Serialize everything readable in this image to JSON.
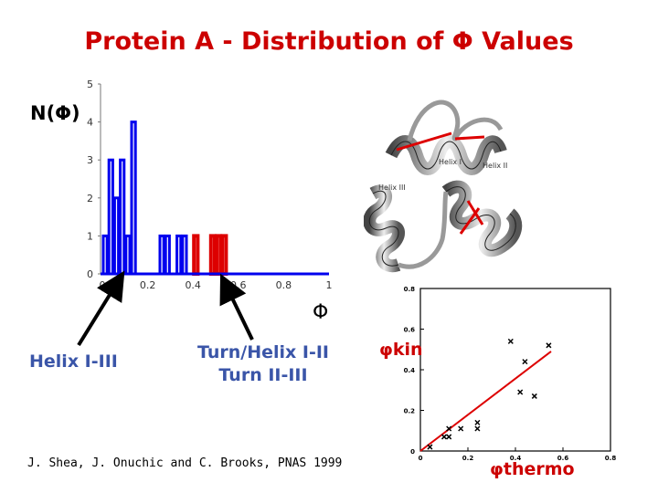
{
  "title": "Protein A - Distribution of  Φ Values",
  "histogram": {
    "ylabel": "N(Φ)",
    "xlabel": "Φ"
  },
  "annotations": {
    "left_label": "Helix I-III",
    "right_label_line1": "Turn/Helix I-II",
    "right_label_line2": "Turn II-III"
  },
  "structure_image": {
    "label_helix_1": "Helix I",
    "label_helix_2": "Helix II",
    "label_helix_3": "Helix III"
  },
  "scatter": {
    "ylabel": "φkin",
    "xlabel": "φthermo"
  },
  "citation": "J. Shea, J. Onuchic and C. Brooks, PNAS 1999",
  "colors": {
    "title": "#cc0000",
    "blue_bars": "#0000ee",
    "red_bars": "#dd0000",
    "label_blue": "#3a55a8",
    "fit_line": "#dd0000"
  },
  "chart_data": [
    {
      "type": "bar",
      "xlabel": "Φ",
      "ylabel": "N(Φ)",
      "xlim": [
        0,
        1
      ],
      "ylim": [
        0,
        5
      ],
      "xticks": [
        "0",
        "0.2",
        "0.4",
        "0.6",
        "0.8",
        "1"
      ],
      "yticks": [
        "0",
        "1",
        "2",
        "3",
        "4",
        "5"
      ],
      "bins": [
        {
          "x0": 0.0,
          "x1": 0.025,
          "count": 1,
          "color": "blue"
        },
        {
          "x0": 0.025,
          "x1": 0.05,
          "count": 3,
          "color": "blue"
        },
        {
          "x0": 0.05,
          "x1": 0.075,
          "count": 2,
          "color": "blue"
        },
        {
          "x0": 0.075,
          "x1": 0.1,
          "count": 3,
          "color": "blue"
        },
        {
          "x0": 0.1,
          "x1": 0.125,
          "count": 1,
          "color": "blue"
        },
        {
          "x0": 0.125,
          "x1": 0.15,
          "count": 4,
          "color": "blue"
        },
        {
          "x0": 0.15,
          "x1": 0.175,
          "count": 0,
          "color": "blue"
        },
        {
          "x0": 0.175,
          "x1": 0.2,
          "count": 0,
          "color": "blue"
        },
        {
          "x0": 0.2,
          "x1": 0.225,
          "count": 0,
          "color": "blue"
        },
        {
          "x0": 0.225,
          "x1": 0.25,
          "count": 0,
          "color": "blue"
        },
        {
          "x0": 0.25,
          "x1": 0.275,
          "count": 1,
          "color": "blue"
        },
        {
          "x0": 0.275,
          "x1": 0.3,
          "count": 1,
          "color": "blue"
        },
        {
          "x0": 0.3,
          "x1": 0.325,
          "count": 0,
          "color": "blue"
        },
        {
          "x0": 0.325,
          "x1": 0.35,
          "count": 1,
          "color": "blue"
        },
        {
          "x0": 0.35,
          "x1": 0.375,
          "count": 1,
          "color": "blue"
        },
        {
          "x0": 0.375,
          "x1": 0.4,
          "count": 0,
          "color": "blue"
        },
        {
          "x0": 0.4,
          "x1": 0.425,
          "count": 1,
          "color": "red"
        },
        {
          "x0": 0.425,
          "x1": 0.45,
          "count": 0,
          "color": "blue"
        },
        {
          "x0": 0.45,
          "x1": 0.475,
          "count": 0,
          "color": "blue"
        },
        {
          "x0": 0.475,
          "x1": 0.5,
          "count": 1,
          "color": "red"
        },
        {
          "x0": 0.5,
          "x1": 0.525,
          "count": 1,
          "color": "red"
        },
        {
          "x0": 0.525,
          "x1": 0.55,
          "count": 1,
          "color": "red"
        },
        {
          "x0": 0.55,
          "x1": 1.0,
          "count": 0,
          "color": "blue"
        }
      ]
    },
    {
      "type": "scatter",
      "xlabel": "φthermo",
      "ylabel": "φkin",
      "xlim": [
        0,
        0.8
      ],
      "ylim": [
        0,
        0.8
      ],
      "xticks": [
        "0",
        "0.2",
        "0.4",
        "0.6",
        "0.8"
      ],
      "yticks": [
        "0",
        "0.2",
        "0.4",
        "0.6",
        "0.8"
      ],
      "points": [
        {
          "x": 0.04,
          "y": 0.02
        },
        {
          "x": 0.1,
          "y": 0.07
        },
        {
          "x": 0.12,
          "y": 0.07
        },
        {
          "x": 0.12,
          "y": 0.11
        },
        {
          "x": 0.17,
          "y": 0.11
        },
        {
          "x": 0.24,
          "y": 0.14
        },
        {
          "x": 0.24,
          "y": 0.11
        },
        {
          "x": 0.38,
          "y": 0.54
        },
        {
          "x": 0.44,
          "y": 0.44
        },
        {
          "x": 0.42,
          "y": 0.29
        },
        {
          "x": 0.48,
          "y": 0.27
        },
        {
          "x": 0.54,
          "y": 0.52
        }
      ],
      "fit_line": [
        {
          "x": 0.0,
          "y": 0.0
        },
        {
          "x": 0.55,
          "y": 0.49
        }
      ]
    }
  ]
}
